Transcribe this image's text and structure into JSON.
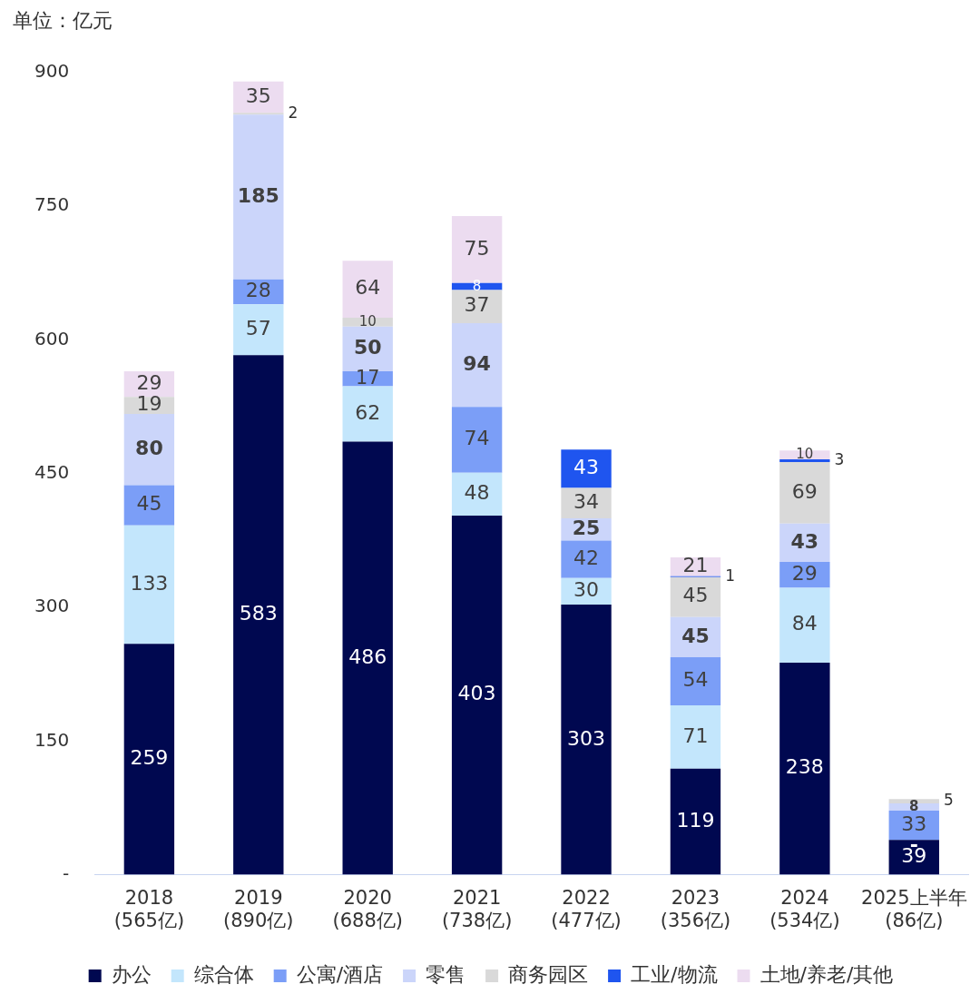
{
  "chart_data": {
    "type": "bar",
    "stacked": true,
    "ylabel": "单位：亿元",
    "categories": [
      "2018\n(565亿)",
      "2019\n(890亿)",
      "2020\n(688亿)",
      "2021\n(738亿)",
      "2022\n(477亿)",
      "2023\n(356亿)",
      "2024\n(534亿)",
      "2025上半年\n(86亿)"
    ],
    "series": [
      {
        "name": "办公",
        "color": "#000850",
        "values": [
          259,
          583,
          486,
          403,
          303,
          119,
          238,
          39
        ]
      },
      {
        "name": "综合体",
        "color": "#c3e6fc",
        "values": [
          133,
          57,
          62,
          48,
          30,
          71,
          84,
          0
        ],
        "value_labels": [
          "133",
          "57",
          "62",
          "48",
          "30",
          "71",
          "84",
          "-"
        ]
      },
      {
        "name": "公寓/酒店",
        "color": "#7b9ef7",
        "values": [
          45,
          28,
          17,
          74,
          42,
          54,
          29,
          33
        ]
      },
      {
        "name": "零售",
        "color": "#cbd5fa",
        "values": [
          80,
          185,
          50,
          94,
          25,
          45,
          43,
          8
        ]
      },
      {
        "name": "商务园区",
        "color": "#d9d9d9",
        "values": [
          19,
          2,
          10,
          37,
          34,
          45,
          69,
          5
        ]
      },
      {
        "name": "工业/物流",
        "color": "#1f55ef",
        "values": [
          null,
          null,
          null,
          8,
          43,
          1,
          3,
          null
        ]
      },
      {
        "name": "土地/养老/其他",
        "color": "#ecdcf0",
        "values": [
          29,
          35,
          64,
          75,
          null,
          21,
          10,
          null
        ]
      }
    ],
    "ylim": [
      0,
      900
    ],
    "yticks": [
      {
        "value": 0,
        "label": "-"
      },
      150,
      300,
      450,
      600,
      750,
      900
    ],
    "grid": false,
    "legend": "bottom",
    "data_labels": true
  }
}
